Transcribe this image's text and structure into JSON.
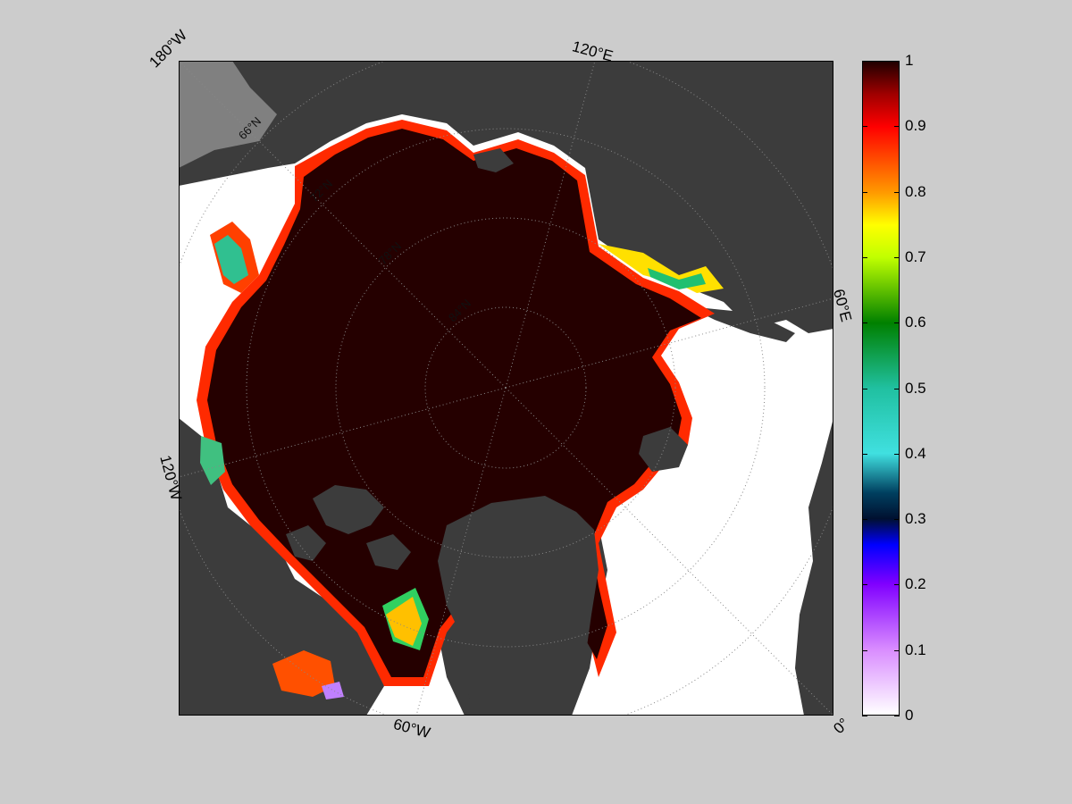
{
  "map": {
    "longitude_labels": {
      "lon_180w": "180°W",
      "lon_120e": "120°E",
      "lon_60e": "60°E",
      "lon_0": "0°",
      "lon_60w": "60°W",
      "lon_120w": "120°W"
    },
    "latitude_labels": {
      "lat_66": "66°N",
      "lat_72": "72°N",
      "lat_78": "78°N",
      "lat_84": "84°N"
    },
    "colors": {
      "ocean_open": "#ffffff",
      "land": "#3c3c3c",
      "land_light": "#808080",
      "ice_full": "#250000",
      "figure_background": "#cccccc"
    }
  },
  "colorbar": {
    "range": [
      0,
      1
    ],
    "ticks": [
      "0",
      "0.1",
      "0.2",
      "0.3",
      "0.4",
      "0.5",
      "0.6",
      "0.7",
      "0.8",
      "0.9",
      "1"
    ],
    "tick_values": [
      0,
      0.1,
      0.2,
      0.3,
      0.4,
      0.5,
      0.6,
      0.7,
      0.8,
      0.9,
      1
    ],
    "colormap": [
      {
        "v": 0.0,
        "c": "#ffffff"
      },
      {
        "v": 0.1,
        "c": "#d98cff"
      },
      {
        "v": 0.2,
        "c": "#8000ff"
      },
      {
        "v": 0.26,
        "c": "#0000ff"
      },
      {
        "v": 0.3,
        "c": "#001030"
      },
      {
        "v": 0.34,
        "c": "#004060"
      },
      {
        "v": 0.4,
        "c": "#40e0e0"
      },
      {
        "v": 0.5,
        "c": "#20c0a0"
      },
      {
        "v": 0.6,
        "c": "#008000"
      },
      {
        "v": 0.7,
        "c": "#c0ff00"
      },
      {
        "v": 0.75,
        "c": "#ffff00"
      },
      {
        "v": 0.8,
        "c": "#ff9900"
      },
      {
        "v": 0.9,
        "c": "#ff0000"
      },
      {
        "v": 0.95,
        "c": "#a00000"
      },
      {
        "v": 1.0,
        "c": "#200000"
      }
    ]
  }
}
